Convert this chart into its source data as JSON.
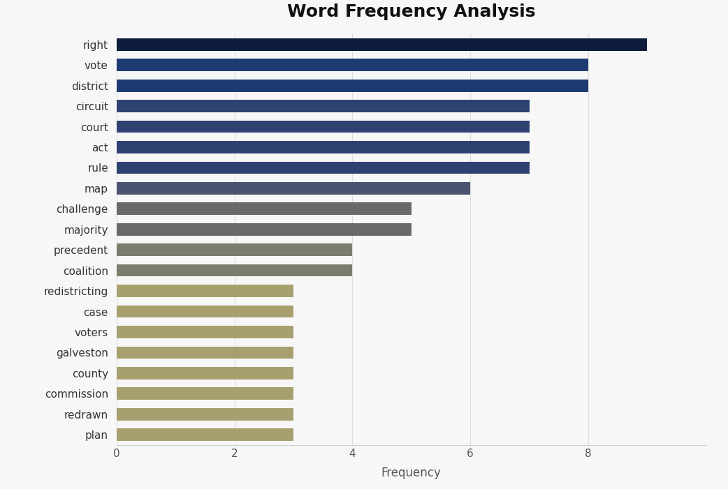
{
  "title": "Word Frequency Analysis",
  "xlabel": "Frequency",
  "categories": [
    "right",
    "vote",
    "district",
    "circuit",
    "court",
    "act",
    "rule",
    "map",
    "challenge",
    "majority",
    "precedent",
    "coalition",
    "redistricting",
    "case",
    "voters",
    "galveston",
    "county",
    "commission",
    "redrawn",
    "plan"
  ],
  "values": [
    9,
    8,
    8,
    7,
    7,
    7,
    7,
    6,
    5,
    5,
    4,
    4,
    3,
    3,
    3,
    3,
    3,
    3,
    3,
    3
  ],
  "bar_colors": [
    "#0c1c3a",
    "#1b3b72",
    "#1b3b72",
    "#2e4272",
    "#2e4272",
    "#2e4272",
    "#2e4272",
    "#4a5470",
    "#696969",
    "#696969",
    "#7d7d6e",
    "#7d7d6e",
    "#a89f6e",
    "#a89f6e",
    "#a89f6e",
    "#a89f6e",
    "#a89f6e",
    "#a89f6e",
    "#a89f6e",
    "#a89f6e"
  ],
  "background_color": "#f7f7f7",
  "title_fontsize": 18,
  "xlim": [
    0,
    10
  ],
  "xticks": [
    0,
    2,
    4,
    6,
    8
  ]
}
